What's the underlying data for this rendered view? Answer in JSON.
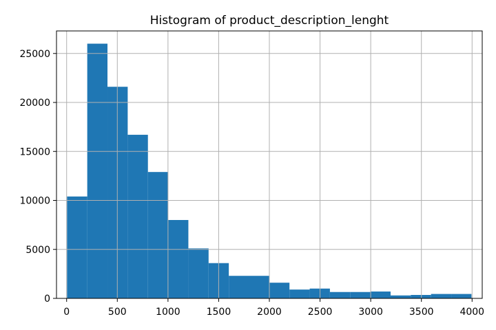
{
  "chart_data": {
    "type": "bar",
    "title": "Histogram of product_description_lenght",
    "xlabel": "",
    "ylabel": "",
    "xlim": [
      -100,
      4100
    ],
    "ylim": [
      0,
      27300
    ],
    "grid": true,
    "bar_color": "#1f77b4",
    "grid_color": "#b0b0b0",
    "bins": [
      {
        "x0": 4,
        "x1": 203.5,
        "count": 10400
      },
      {
        "x0": 203.5,
        "x1": 403,
        "count": 26000
      },
      {
        "x0": 403,
        "x1": 602.5,
        "count": 21600
      },
      {
        "x0": 602.5,
        "x1": 802,
        "count": 16700
      },
      {
        "x0": 802,
        "x1": 1001.5,
        "count": 12900
      },
      {
        "x0": 1001.5,
        "x1": 1201,
        "count": 8000
      },
      {
        "x0": 1201,
        "x1": 1400.5,
        "count": 5100
      },
      {
        "x0": 1400.5,
        "x1": 1600,
        "count": 3600
      },
      {
        "x0": 1600,
        "x1": 1799.5,
        "count": 2300
      },
      {
        "x0": 1799.5,
        "x1": 1999,
        "count": 2300
      },
      {
        "x0": 1999,
        "x1": 2198.5,
        "count": 1600
      },
      {
        "x0": 2198.5,
        "x1": 2398,
        "count": 900
      },
      {
        "x0": 2398,
        "x1": 2597.5,
        "count": 1000
      },
      {
        "x0": 2597.5,
        "x1": 2797,
        "count": 650
      },
      {
        "x0": 2797,
        "x1": 2996.5,
        "count": 650
      },
      {
        "x0": 2996.5,
        "x1": 3196,
        "count": 700
      },
      {
        "x0": 3196,
        "x1": 3395.5,
        "count": 300
      },
      {
        "x0": 3395.5,
        "x1": 3595,
        "count": 350
      },
      {
        "x0": 3595,
        "x1": 3794.5,
        "count": 450
      },
      {
        "x0": 3794.5,
        "x1": 3994,
        "count": 450
      }
    ],
    "x_ticks": [
      0,
      500,
      1000,
      1500,
      2000,
      2500,
      3000,
      3500,
      4000
    ],
    "x_tick_labels": [
      "0",
      "500",
      "1000",
      "1500",
      "2000",
      "2500",
      "3000",
      "3500",
      "4000"
    ],
    "y_ticks": [
      0,
      5000,
      10000,
      15000,
      20000,
      25000
    ],
    "y_tick_labels": [
      "0",
      "5000",
      "10000",
      "15000",
      "20000",
      "25000"
    ]
  }
}
